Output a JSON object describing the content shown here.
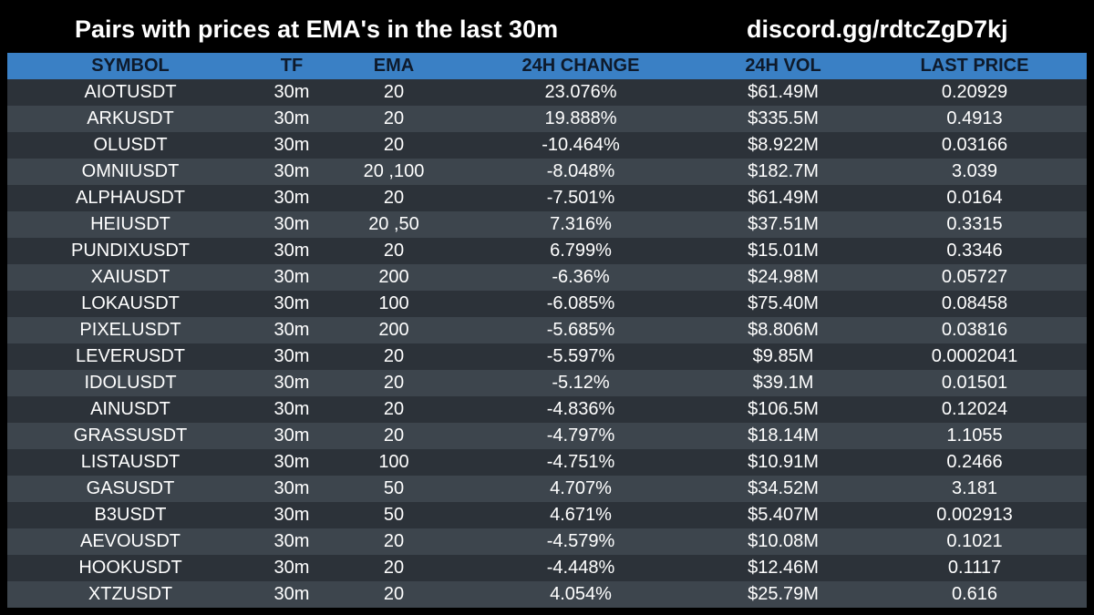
{
  "header": {
    "title": "Pairs with prices at EMA's in the last 30m",
    "discord": "discord.gg/rdtcZgD7kj"
  },
  "table": {
    "columns": [
      "SYMBOL",
      "TF",
      "EMA",
      "24H CHANGE",
      "24H VOL",
      "LAST PRICE"
    ],
    "rows": [
      [
        "AIOTUSDT",
        "30m",
        "20",
        "23.076%",
        "$61.49M",
        "0.20929"
      ],
      [
        "ARKUSDT",
        "30m",
        "20",
        "19.888%",
        "$335.5M",
        "0.4913"
      ],
      [
        "OLUSDT",
        "30m",
        "20",
        "-10.464%",
        "$8.922M",
        "0.03166"
      ],
      [
        "OMNIUSDT",
        "30m",
        "20 ,100",
        "-8.048%",
        "$182.7M",
        "3.039"
      ],
      [
        "ALPHAUSDT",
        "30m",
        "20",
        "-7.501%",
        "$61.49M",
        "0.0164"
      ],
      [
        "HEIUSDT",
        "30m",
        "20 ,50",
        "7.316%",
        "$37.51M",
        "0.3315"
      ],
      [
        "PUNDIXUSDT",
        "30m",
        "20",
        "6.799%",
        "$15.01M",
        "0.3346"
      ],
      [
        "XAIUSDT",
        "30m",
        "200",
        "-6.36%",
        "$24.98M",
        "0.05727"
      ],
      [
        "LOKAUSDT",
        "30m",
        "100",
        "-6.085%",
        "$75.40M",
        "0.08458"
      ],
      [
        "PIXELUSDT",
        "30m",
        "200",
        "-5.685%",
        "$8.806M",
        "0.03816"
      ],
      [
        "LEVERUSDT",
        "30m",
        "20",
        "-5.597%",
        "$9.85M",
        "0.0002041"
      ],
      [
        "IDOLUSDT",
        "30m",
        "20",
        "-5.12%",
        "$39.1M",
        "0.01501"
      ],
      [
        "AINUSDT",
        "30m",
        "20",
        "-4.836%",
        "$106.5M",
        "0.12024"
      ],
      [
        "GRASSUSDT",
        "30m",
        "20",
        "-4.797%",
        "$18.14M",
        "1.1055"
      ],
      [
        "LISTAUSDT",
        "30m",
        "100",
        "-4.751%",
        "$10.91M",
        "0.2466"
      ],
      [
        "GASUSDT",
        "30m",
        "50",
        "4.707%",
        "$34.52M",
        "3.181"
      ],
      [
        "B3USDT",
        "30m",
        "50",
        "4.671%",
        "$5.407M",
        "0.002913"
      ],
      [
        "AEVOUSDT",
        "30m",
        "20",
        "-4.579%",
        "$10.08M",
        "0.1021"
      ],
      [
        "HOOKUSDT",
        "30m",
        "20",
        "-4.448%",
        "$12.46M",
        "0.1117"
      ],
      [
        "XTZUSDT",
        "30m",
        "20",
        "4.054%",
        "$25.79M",
        "0.616"
      ]
    ]
  },
  "colors": {
    "background": "#000000",
    "header_row": "#3a80c5",
    "row_odd": "#2c3239",
    "row_even": "#3d454d",
    "text": "#ffffff"
  }
}
